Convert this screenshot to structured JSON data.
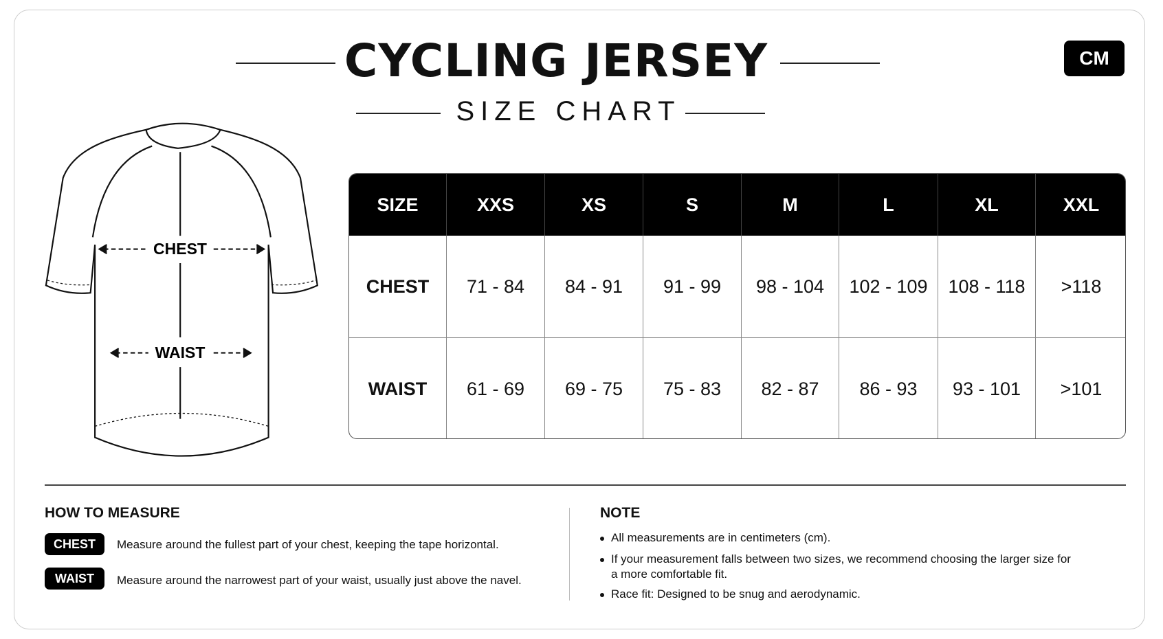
{
  "header": {
    "title": "CYCLING JERSEY",
    "subtitle": "SIZE CHART",
    "unit": "CM"
  },
  "diagram": {
    "labels": [
      "CHEST",
      "WAIST"
    ]
  },
  "table": {
    "header": [
      "SIZE",
      "XXS",
      "XS",
      "S",
      "M",
      "L",
      "XL",
      "XXL"
    ],
    "rows": [
      [
        "CHEST",
        "71 - 84",
        "84 - 91",
        "91 - 99",
        "98 - 104",
        "102 - 109",
        "108 - 118",
        ">118"
      ],
      [
        "WAIST",
        "61 - 69",
        "69 - 75",
        "75 - 83",
        "82 - 87",
        "86 - 93",
        "93 - 101",
        ">101"
      ]
    ]
  },
  "how_to_measure": {
    "title": "HOW TO MEASURE",
    "items": [
      {
        "tag": "CHEST",
        "text": "Measure around the fullest part of your chest, keeping the tape horizontal."
      },
      {
        "tag": "WAIST",
        "text": "Measure around the narrowest part of your waist, usually just above the navel."
      }
    ]
  },
  "note": {
    "title": "NOTE",
    "items": [
      "All measurements are in centimeters (cm).",
      "If your measurement falls between two sizes, we recommend choosing the larger size for a more comfortable fit.",
      "Race fit: Designed to be snug and aerodynamic."
    ]
  }
}
